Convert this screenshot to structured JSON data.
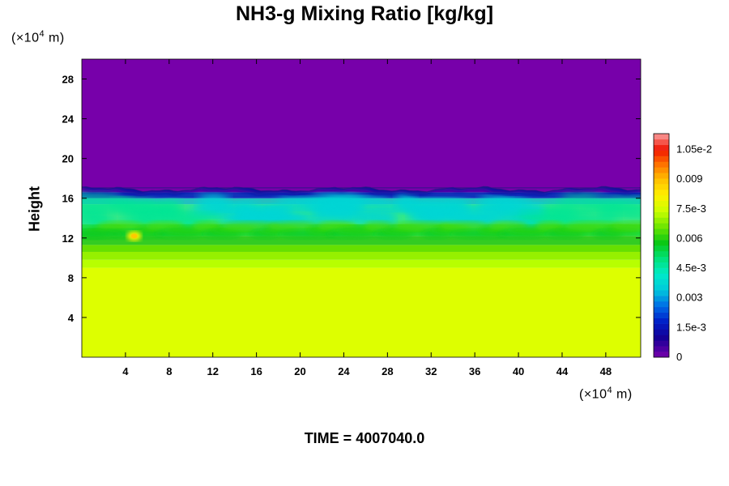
{
  "header": {
    "title": "NH3-g Mixing Ratio [kg/kg]",
    "y_unit_prefix": "(×10",
    "y_unit_exp": "4",
    "y_unit_suffix": " m)",
    "x_unit_prefix": "(×10",
    "x_unit_exp": "4",
    "x_unit_suffix": " m)",
    "time_label": "TIME = 4007040.0"
  },
  "chart_data": {
    "type": "heatmap",
    "title": "NH3-g Mixing Ratio [kg/kg]",
    "xlabel": "",
    "ylabel": "Height",
    "xlim": [
      0,
      51.2
    ],
    "ylim": [
      0,
      30
    ],
    "xticks": [
      4,
      8,
      12,
      16,
      20,
      24,
      28,
      32,
      36,
      40,
      44,
      48
    ],
    "yticks": [
      4,
      8,
      12,
      16,
      20,
      24,
      28
    ],
    "colorbar": {
      "range": [
        0,
        0.0113
      ],
      "tick_values": [
        0,
        0.0015,
        0.003,
        0.0045,
        0.006,
        0.0075,
        0.009,
        0.0105
      ],
      "tick_labels": [
        "0",
        "1.5e-3",
        "0.003",
        "4.5e-3",
        "0.006",
        "7.5e-3",
        "0.009",
        "1.05e-2"
      ]
    },
    "layers": [
      {
        "bottom": 0,
        "top": 9.0,
        "value": 0.0078,
        "color": "#ddff00"
      },
      {
        "bottom": 9.0,
        "top": 9.8,
        "value": 0.0073,
        "color": "#b8ff00"
      },
      {
        "bottom": 9.8,
        "top": 10.6,
        "value": 0.0068,
        "color": "#96f000"
      },
      {
        "bottom": 10.6,
        "top": 11.3,
        "value": 0.0064,
        "color": "#66e000"
      },
      {
        "bottom": 11.3,
        "top": 12.2,
        "value": 0.006,
        "color": "#33cc22"
      },
      {
        "bottom": 12.2,
        "top": 13.4,
        "value": 0.0055,
        "color": "#22dd44"
      },
      {
        "bottom": 13.4,
        "top": 15.4,
        "value": 0.005,
        "color": "#33e888"
      },
      {
        "bottom": 15.4,
        "top": 16.0,
        "value": 0.0035,
        "color": "#22c0c0"
      },
      {
        "bottom": 16.0,
        "top": 16.6,
        "value": 0.0012,
        "color": "#1133bb"
      },
      {
        "bottom": 16.6,
        "top": 30,
        "value": 0,
        "color": "#7700aa"
      }
    ],
    "features": [
      {
        "type": "cyan-zone",
        "x_from": 18,
        "x_to": 38,
        "y_from": 13.6,
        "y_to": 15.6,
        "value": 0.004
      },
      {
        "type": "hot-spot",
        "x": 4.8,
        "y": 12.2,
        "value": 0.0082
      }
    ]
  }
}
